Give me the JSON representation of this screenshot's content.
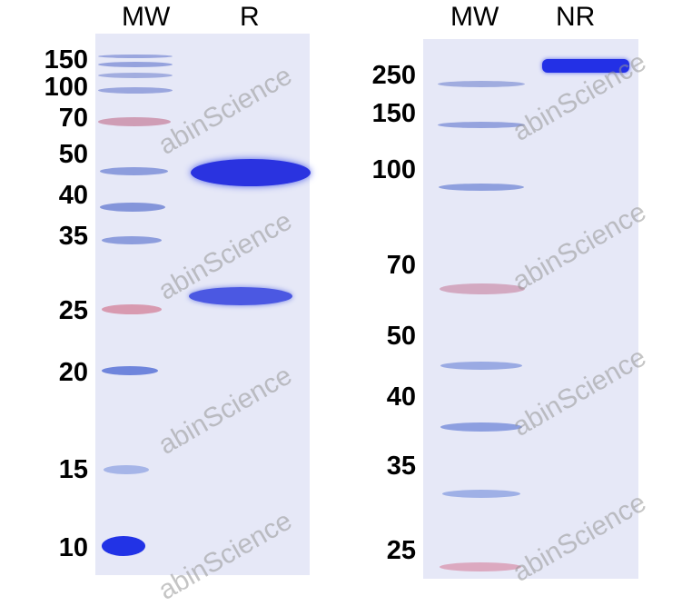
{
  "left_gel": {
    "lanes": [
      "MW",
      "R"
    ],
    "markers": [
      "150",
      "100",
      "70",
      "50",
      "40",
      "35",
      "25",
      "20",
      "15",
      "10"
    ]
  },
  "right_gel": {
    "lanes": [
      "MW",
      "NR"
    ],
    "markers": [
      "250",
      "150",
      "100",
      "70",
      "50",
      "40",
      "35",
      "25"
    ]
  },
  "watermark": "abinScience",
  "colors": {
    "gel": "#e6e8f7",
    "protein_band": "#2a33e0",
    "marker_blue": "#7f92db",
    "marker_pink": "#d79ab0"
  }
}
